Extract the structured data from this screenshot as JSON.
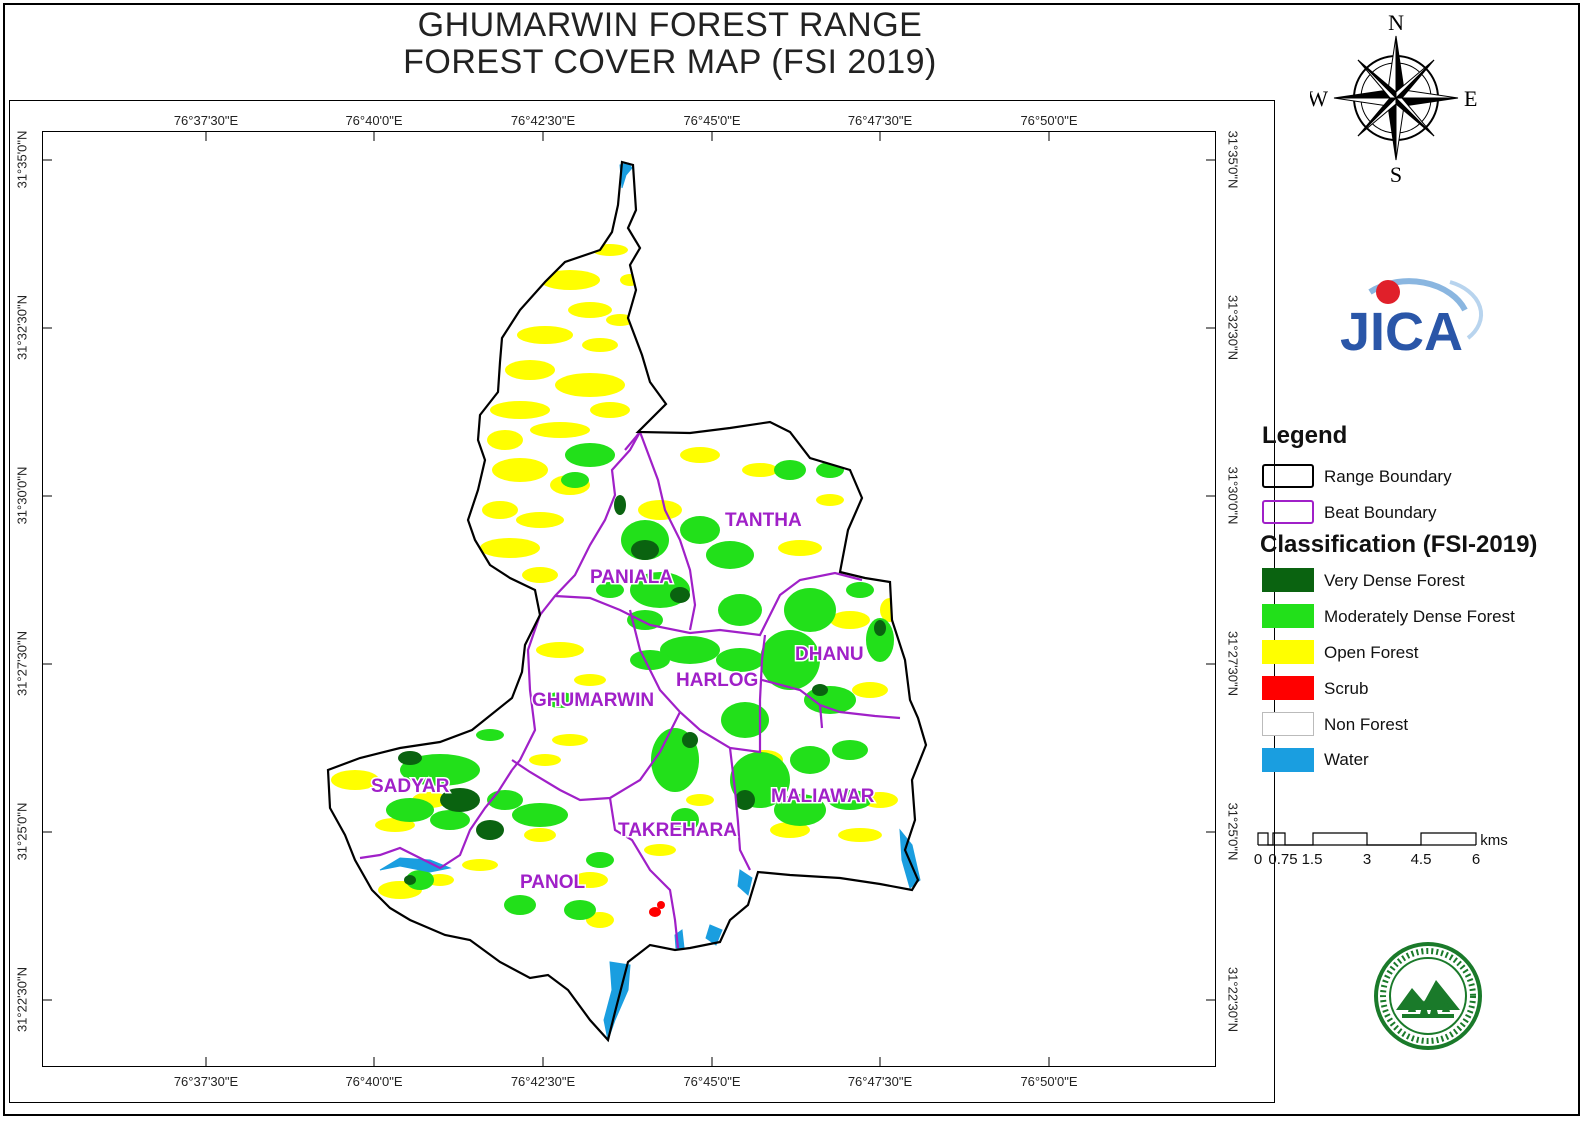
{
  "title": {
    "line1": "GHUMARWIN FOREST RANGE",
    "line2": "FOREST COVER MAP (FSI 2019)"
  },
  "graticule": {
    "lon_labels": [
      "76°37'30\"E",
      "76°40'0\"E",
      "76°42'30\"E",
      "76°45'0\"E",
      "76°47'30\"E",
      "76°50'0\"E"
    ],
    "lat_labels": [
      "31°35'0\"N",
      "31°32'30\"N",
      "31°30'0\"N",
      "31°27'30\"N",
      "31°25'0\"N",
      "31°22'30\"N"
    ]
  },
  "compass": {
    "n": "N",
    "s": "S",
    "e": "E",
    "w": "W",
    "icon": "compass-rose-icon"
  },
  "logos": {
    "jica": "JICA",
    "forest_dept": "forest-department-seal"
  },
  "legend": {
    "title": "Legend",
    "boundaries": [
      {
        "label": "Range Boundary",
        "color": "#000000"
      },
      {
        "label": "Beat Boundary",
        "color": "#a020c8"
      }
    ],
    "classification_title": "Classification (FSI-2019)",
    "classes": [
      {
        "label": "Very Dense Forest",
        "color": "#0a6310"
      },
      {
        "label": "Moderately Dense Forest",
        "color": "#22e01a"
      },
      {
        "label": "Open Forest",
        "color": "#ffff00"
      },
      {
        "label": "Scrub",
        "color": "#ff0000"
      },
      {
        "label": "Non Forest",
        "color": "#ffffff"
      },
      {
        "label": "Water",
        "color": "#1a9ee0"
      }
    ]
  },
  "scale_bar": {
    "unit": "kms",
    "labels": [
      "0",
      "0.75",
      "1.5",
      "3",
      "4.5",
      "6"
    ]
  },
  "beats": [
    "TANTHA",
    "PANIALA",
    "DHANU",
    "HARLOG",
    "GHUMARWIN",
    "SADYAR",
    "MALIAWAR",
    "TAKREHARA",
    "PANOL"
  ]
}
